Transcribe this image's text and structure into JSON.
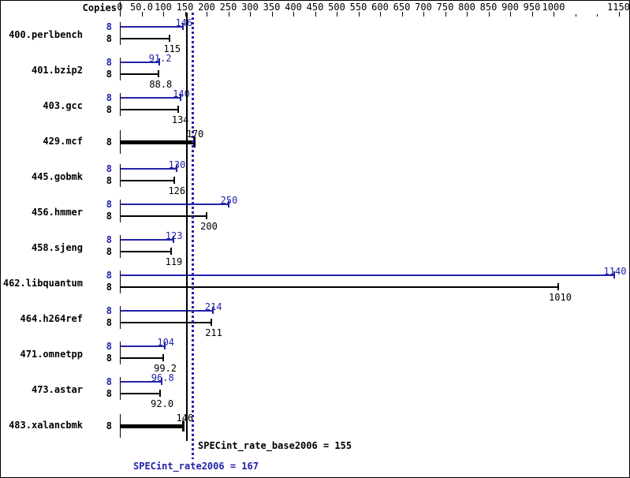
{
  "chart_data": {
    "type": "bar",
    "orientation": "horizontal",
    "axis_label": "Copies",
    "xlim": [
      0,
      1150
    ],
    "grid": false,
    "colors": {
      "peak": "#2222aa",
      "base": "#000000"
    },
    "axis": {
      "labeled_ticks": [
        {
          "v": 0,
          "label": "0"
        },
        {
          "v": 50,
          "label": "50.0"
        },
        {
          "v": 100,
          "label": "100"
        },
        {
          "v": 150,
          "label": "150"
        },
        {
          "v": 200,
          "label": "200"
        },
        {
          "v": 250,
          "label": "250"
        },
        {
          "v": 300,
          "label": "300"
        },
        {
          "v": 350,
          "label": "350"
        },
        {
          "v": 400,
          "label": "400"
        },
        {
          "v": 450,
          "label": "450"
        },
        {
          "v": 500,
          "label": "500"
        },
        {
          "v": 550,
          "label": "550"
        },
        {
          "v": 600,
          "label": "600"
        },
        {
          "v": 650,
          "label": "650"
        },
        {
          "v": 700,
          "label": "700"
        },
        {
          "v": 750,
          "label": "750"
        },
        {
          "v": 800,
          "label": "800"
        },
        {
          "v": 850,
          "label": "850"
        },
        {
          "v": 900,
          "label": "900"
        },
        {
          "v": 950,
          "label": "950"
        },
        {
          "v": 1000,
          "label": "1000"
        },
        {
          "v": 1150,
          "label": "1150"
        }
      ],
      "minor_ticks": [
        1050,
        1100
      ]
    },
    "benchmarks": [
      {
        "name": "400.perlbench",
        "copies": "8",
        "peak": 146,
        "base": 115,
        "peak_label": "146",
        "base_label": "115",
        "same": false
      },
      {
        "name": "401.bzip2",
        "copies": "8",
        "peak": 91.2,
        "base": 88.8,
        "peak_label": "91.2",
        "base_label": "88.8",
        "same": false
      },
      {
        "name": "403.gcc",
        "copies": "8",
        "peak": 140,
        "base": 134,
        "peak_label": "140",
        "base_label": "134",
        "same": false
      },
      {
        "name": "429.mcf",
        "copies": "8",
        "peak": 170,
        "base": 170,
        "peak_label": "170",
        "base_label": "170",
        "same": true
      },
      {
        "name": "445.gobmk",
        "copies": "8",
        "peak": 130,
        "base": 126,
        "peak_label": "130",
        "base_label": "126",
        "same": false
      },
      {
        "name": "456.hmmer",
        "copies": "8",
        "peak": 250,
        "base": 200,
        "peak_label": "250",
        "base_label": "200",
        "same": false
      },
      {
        "name": "458.sjeng",
        "copies": "8",
        "peak": 123,
        "base": 119,
        "peak_label": "123",
        "base_label": "119",
        "same": false
      },
      {
        "name": "462.libquantum",
        "copies": "8",
        "peak": 1140,
        "base": 1010,
        "peak_label": "1140",
        "base_label": "1010",
        "same": false
      },
      {
        "name": "464.h264ref",
        "copies": "8",
        "peak": 214,
        "base": 211,
        "peak_label": "214",
        "base_label": "211",
        "same": false
      },
      {
        "name": "471.omnetpp",
        "copies": "8",
        "peak": 104,
        "base": 99.2,
        "peak_label": "104",
        "base_label": "99.2",
        "same": false
      },
      {
        "name": "473.astar",
        "copies": "8",
        "peak": 96.8,
        "base": 92.0,
        "peak_label": "96.8",
        "base_label": "92.0",
        "same": false
      },
      {
        "name": "483.xalancbmk",
        "copies": "8",
        "peak": 146,
        "base": 146,
        "peak_label": "146",
        "base_label": "146",
        "same": true
      }
    ],
    "scores": [
      {
        "name": "SPECint_rate_base2006",
        "value": 155,
        "text": "SPECint_rate_base2006 = 155",
        "color": "#000000",
        "line_style": "solid"
      },
      {
        "name": "SPECint_rate2006",
        "value": 167,
        "text": "SPECint_rate2006 = 167",
        "color": "#2222aa",
        "line_style": "dotted"
      }
    ]
  }
}
